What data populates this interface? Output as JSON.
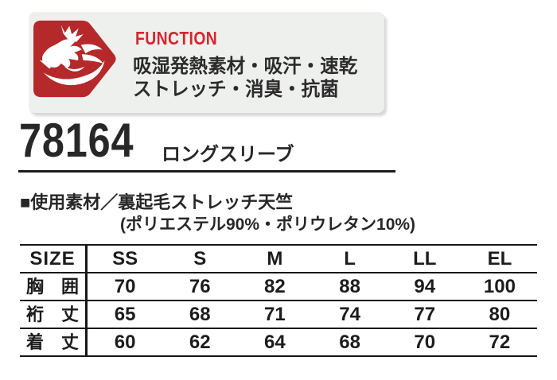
{
  "colors": {
    "badge_red": "#b5292b",
    "function_red": "#d6252e",
    "text_dark": "#262626",
    "panel_bg": "#eef0ed",
    "line": "#161616"
  },
  "function_panel": {
    "title": "FUNCTION",
    "features": [
      "吸湿発熱素材・吸汗・速乾",
      "ストレッチ・消臭・抗菌"
    ],
    "badge_icon": "dragon-icon"
  },
  "product": {
    "code": "78164",
    "name": "ロングスリーブ"
  },
  "material": {
    "line1": "■使用素材／裏起毛ストレッチ天竺",
    "line2": "(ポリエステル90%・ポリウレタン10%)"
  },
  "size_table": {
    "type": "table",
    "header": [
      "SIZE",
      "SS",
      "S",
      "M",
      "L",
      "LL",
      "EL"
    ],
    "rows": [
      {
        "label": "胸 囲",
        "values": [
          70,
          76,
          82,
          88,
          94,
          100
        ]
      },
      {
        "label": "裄 丈",
        "values": [
          65,
          68,
          71,
          74,
          77,
          80
        ]
      },
      {
        "label": "着 丈",
        "values": [
          60,
          62,
          64,
          68,
          70,
          72
        ]
      }
    ]
  }
}
